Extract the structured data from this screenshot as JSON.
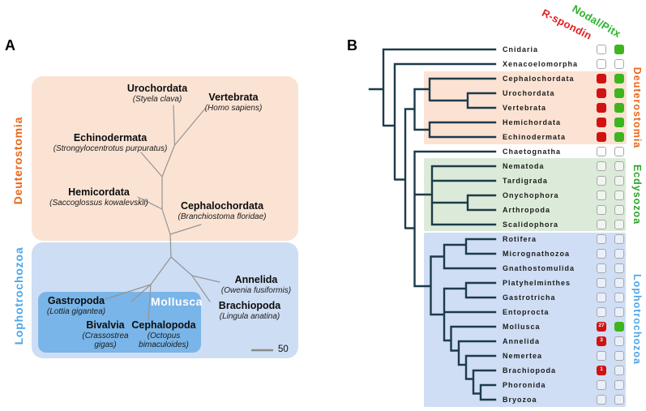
{
  "panelA": {
    "panel_label": "A",
    "clade_labels": {
      "deuterostomia": "Deuterostomia",
      "lophotrochozoa": "Lophotrochozoa",
      "mollusca": "Mollusca"
    },
    "scale_bar_label": "50",
    "taxa": [
      {
        "name": "Urochordata",
        "species": "(Styela clava)"
      },
      {
        "name": "Vertebrata",
        "species": "(Homo sapiens)"
      },
      {
        "name": "Echinodermata",
        "species": "(Strongylocentrotus purpuratus)"
      },
      {
        "name": "Hemicordata",
        "species": "(Saccoglossus kowalevskii)"
      },
      {
        "name": "Cephalochordata",
        "species": "(Branchiostoma floridae)"
      },
      {
        "name": "Annelida",
        "species": "(Owenia fusiformis)"
      },
      {
        "name": "Brachiopoda",
        "species": "(Lingula anatina)"
      },
      {
        "name": "Gastropoda",
        "species": "(Lottia gigantea)"
      },
      {
        "name": "Bivalvia",
        "species": "(Crassostrea gigas)"
      },
      {
        "name": "Cephalopoda",
        "species": "(Octopus bimaculoides)"
      }
    ]
  },
  "panelB": {
    "panel_label": "B",
    "column_headers": [
      {
        "label": "R-spondin",
        "color": "#e32222"
      },
      {
        "label": "Nodal/Pitx",
        "color": "#2eb32e"
      }
    ],
    "clade_labels": [
      {
        "label": "Deuterostomia",
        "color": "#e8671b"
      },
      {
        "label": "Ecdysozoa",
        "color": "#2aa52a"
      },
      {
        "label": "Lophotrochozoa",
        "color": "#4da6e8"
      }
    ],
    "taxa": [
      {
        "name": "Cnidaria",
        "rspondin": "absent",
        "nodal": "present"
      },
      {
        "name": "Xenacoelomorpha",
        "rspondin": "absent",
        "nodal": "absent"
      },
      {
        "name": "Cephalochordata",
        "rspondin": "present",
        "nodal": "present"
      },
      {
        "name": "Urochordata",
        "rspondin": "present",
        "nodal": "present"
      },
      {
        "name": "Vertebrata",
        "rspondin": "present",
        "nodal": "present"
      },
      {
        "name": "Hemichordata",
        "rspondin": "present",
        "nodal": "present"
      },
      {
        "name": "Echinodermata",
        "rspondin": "present",
        "nodal": "present"
      },
      {
        "name": "Chaetognatha",
        "rspondin": "absent",
        "nodal": "absent"
      },
      {
        "name": "Nematoda",
        "rspondin": "absent",
        "nodal": "absent"
      },
      {
        "name": "Tardigrada",
        "rspondin": "absent",
        "nodal": "absent"
      },
      {
        "name": "Onychophora",
        "rspondin": "absent",
        "nodal": "absent"
      },
      {
        "name": "Arthropoda",
        "rspondin": "absent",
        "nodal": "absent"
      },
      {
        "name": "Scalidophora",
        "rspondin": "absent",
        "nodal": "absent"
      },
      {
        "name": "Rotifera",
        "rspondin": "absent",
        "nodal": "absent"
      },
      {
        "name": "Micrognathozoa",
        "rspondin": "absent",
        "nodal": "absent"
      },
      {
        "name": "Gnathostomulida",
        "rspondin": "absent",
        "nodal": "absent"
      },
      {
        "name": "Platyhelminthes",
        "rspondin": "absent",
        "nodal": "absent"
      },
      {
        "name": "Gastrotricha",
        "rspondin": "absent",
        "nodal": "absent"
      },
      {
        "name": "Entoprocta",
        "rspondin": "absent",
        "nodal": "absent"
      },
      {
        "name": "Mollusca",
        "rspondin": "present",
        "rspondin_count": "27",
        "nodal": "present"
      },
      {
        "name": "Annelida",
        "rspondin": "present",
        "rspondin_count": "3",
        "nodal": "absent"
      },
      {
        "name": "Nemertea",
        "rspondin": "absent",
        "nodal": "absent"
      },
      {
        "name": "Brachiopoda",
        "rspondin": "present",
        "rspondin_count": "1",
        "nodal": "absent"
      },
      {
        "name": "Phoronida",
        "rspondin": "absent",
        "nodal": "absent"
      },
      {
        "name": "Bryozoa",
        "rspondin": "absent",
        "nodal": "absent"
      }
    ]
  },
  "colors": {
    "rspondin_present": "#d21212",
    "nodal_present": "#3eb41e",
    "absent_border": "#a8a8a8",
    "tree_line_b": "#1d3b49",
    "tree_line_a": "#949494",
    "deuterostomia_orange": "#e8671b",
    "lophotrochozoa_blue": "#4da6e8",
    "ecdysozoa_green": "#2aa52a"
  }
}
